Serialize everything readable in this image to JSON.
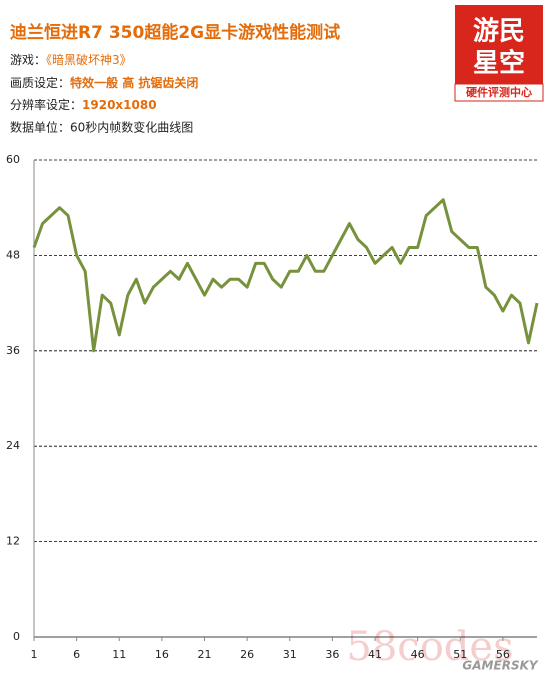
{
  "header": {
    "title": "迪兰恒进R7 350超能2G显卡游戏性能测试",
    "info": [
      {
        "label": "游戏：",
        "value": "《暗黑破坏神3》"
      },
      {
        "label": "画质设定：",
        "value": "特效一般  高  抗锯齿关闭"
      },
      {
        "label": "分辨率设定：",
        "value": "1920x1080"
      }
    ],
    "note": "数据单位：60秒内帧数变化曲线图"
  },
  "logo": {
    "line1": "游民",
    "line2": "星空",
    "line3": "硬件评测中心"
  },
  "watermark": {
    "site": "58codes",
    "brand": "GAMERSKY"
  },
  "chart_data": {
    "type": "line",
    "x": [
      1,
      2,
      3,
      4,
      5,
      6,
      7,
      8,
      9,
      10,
      11,
      12,
      13,
      14,
      15,
      16,
      17,
      18,
      19,
      20,
      21,
      22,
      23,
      24,
      25,
      26,
      27,
      28,
      29,
      30,
      31,
      32,
      33,
      34,
      35,
      36,
      37,
      38,
      39,
      40,
      41,
      42,
      43,
      44,
      45,
      46,
      47,
      48,
      49,
      50,
      51,
      52,
      53,
      54,
      55,
      56,
      57,
      58,
      59,
      60
    ],
    "values": [
      49,
      52,
      53,
      54,
      53,
      48,
      46,
      36,
      43,
      42,
      38,
      43,
      45,
      42,
      44,
      45,
      46,
      45,
      47,
      45,
      43,
      45,
      44,
      45,
      45,
      44,
      47,
      47,
      45,
      44,
      46,
      46,
      48,
      46,
      46,
      48,
      50,
      52,
      50,
      49,
      47,
      48,
      49,
      47,
      49,
      49,
      53,
      54,
      55,
      51,
      50,
      49,
      49,
      44,
      43,
      41,
      43,
      42,
      37,
      42
    ],
    "color": "#77923c",
    "xlim": [
      1,
      60
    ],
    "xticks": [
      1,
      6,
      11,
      16,
      21,
      26,
      31,
      36,
      41,
      46,
      51,
      56
    ],
    "ylim": [
      0,
      60
    ],
    "yticks": [
      0,
      12,
      24,
      36,
      48,
      60
    ],
    "grid": true
  }
}
